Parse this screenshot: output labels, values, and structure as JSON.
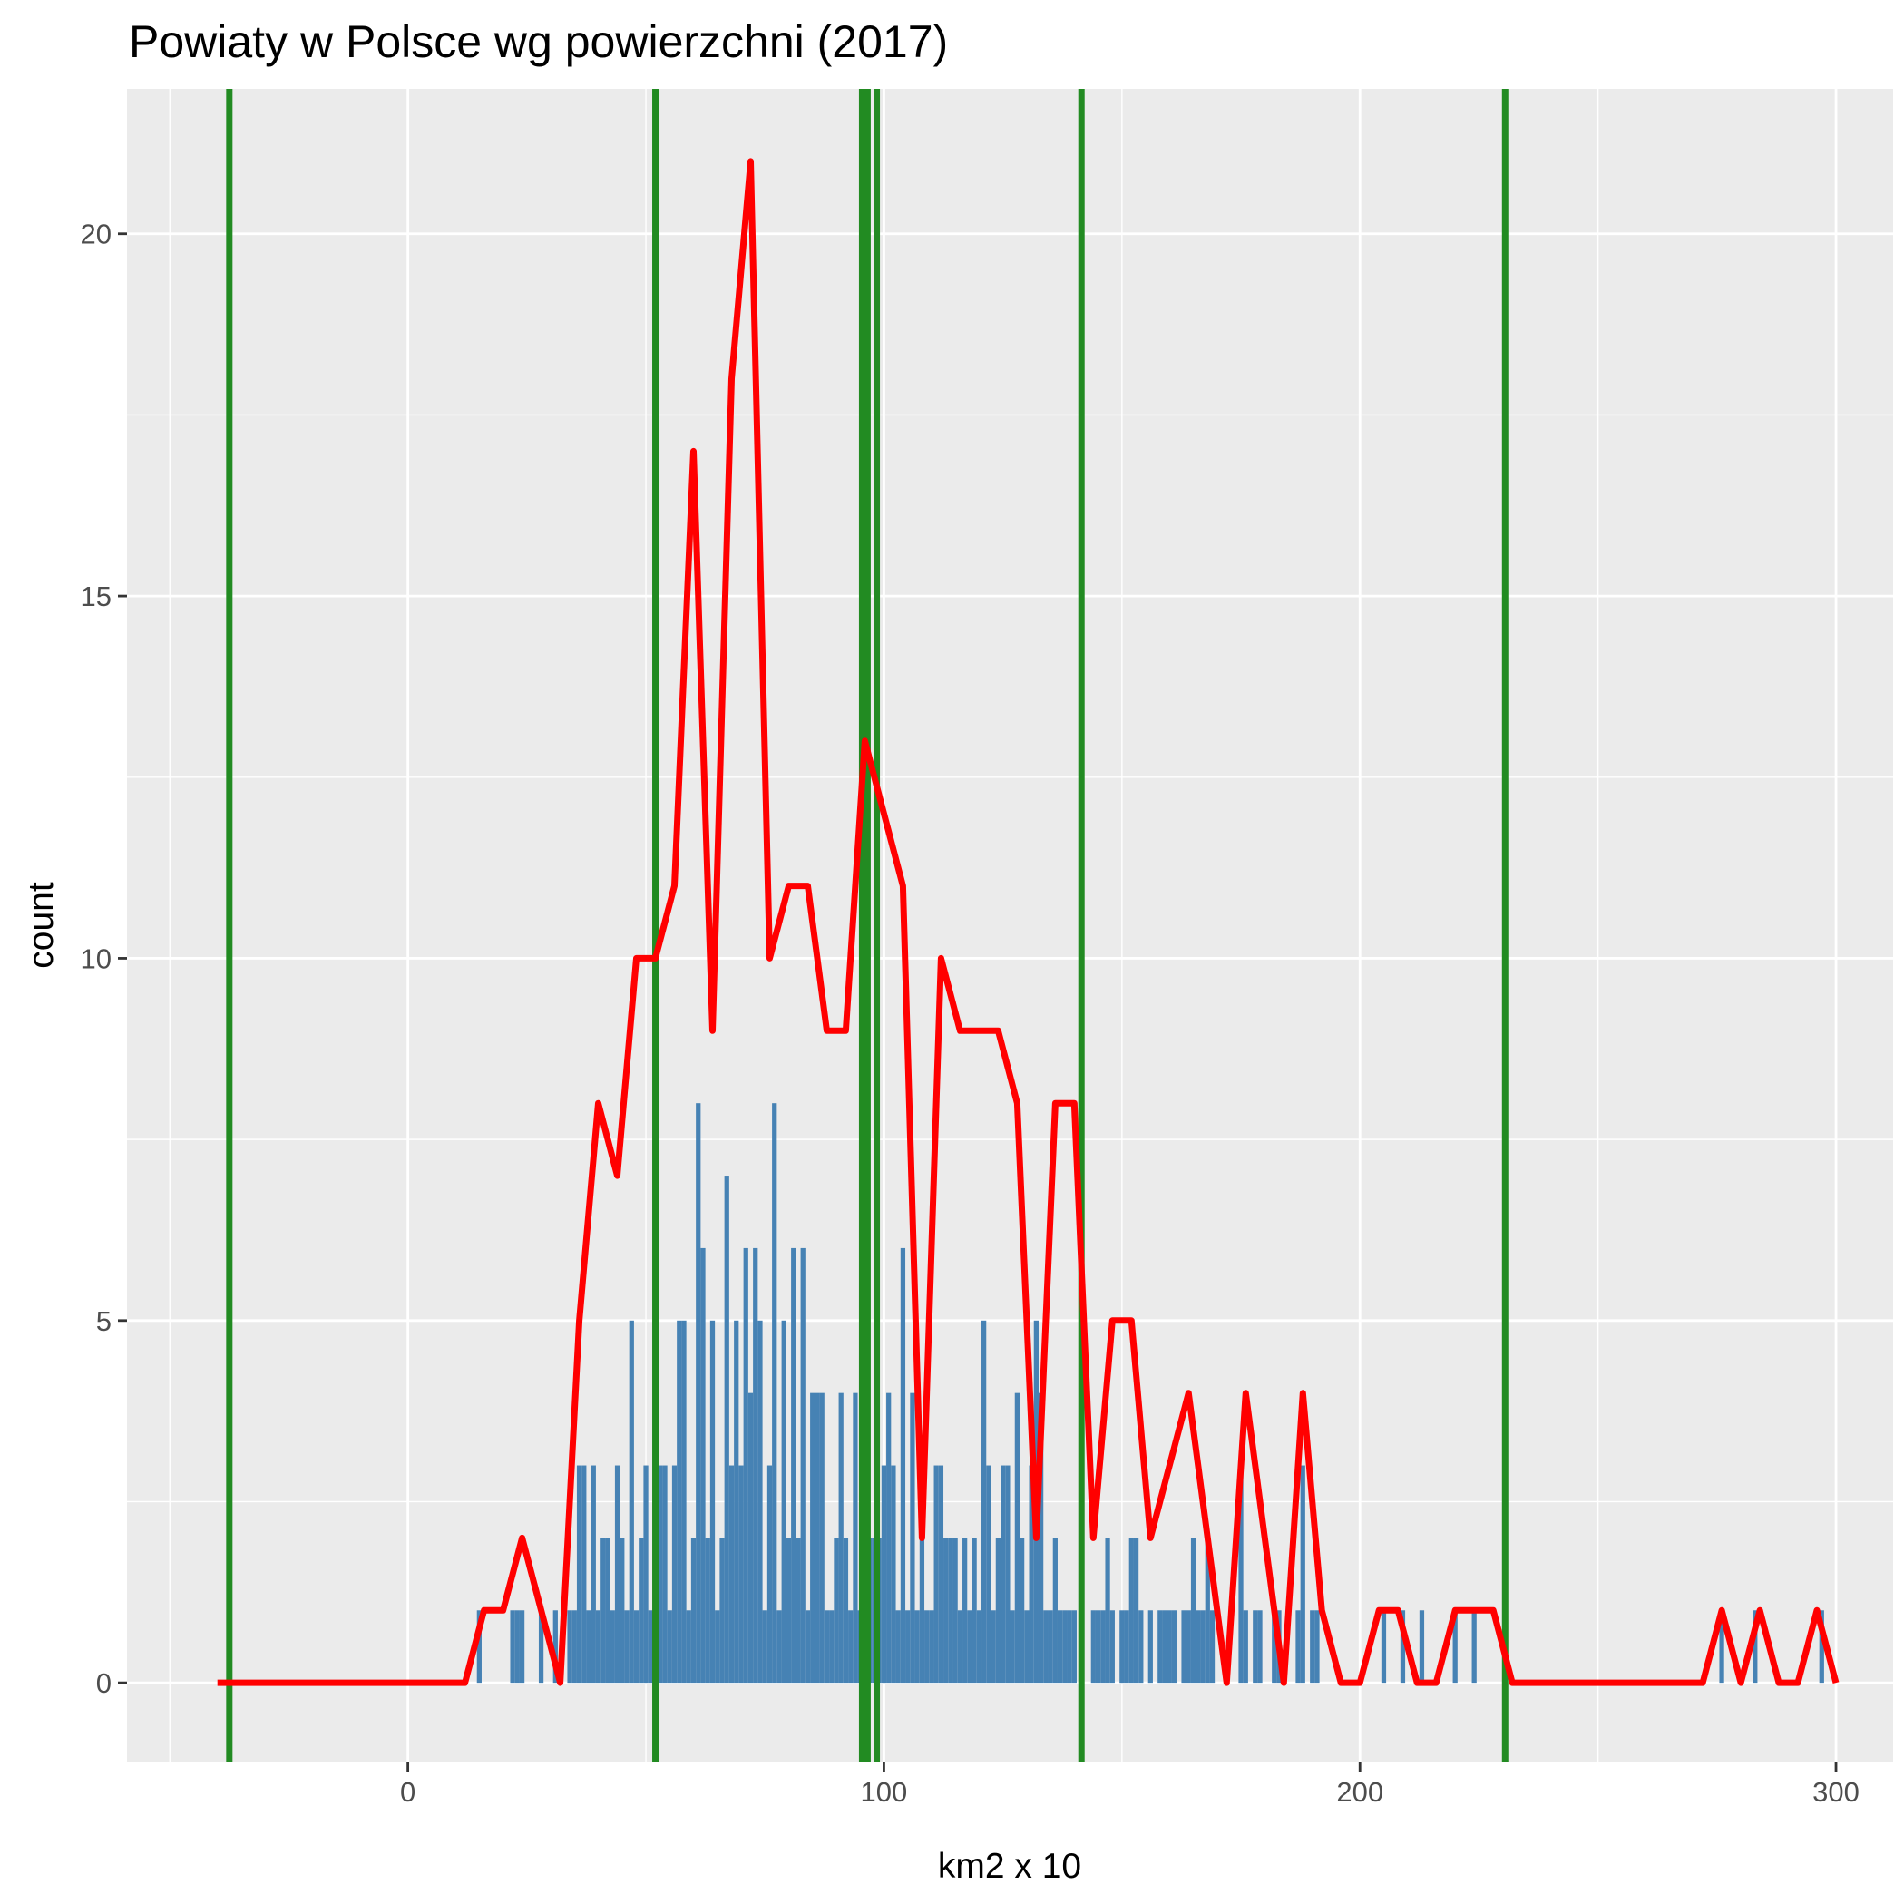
{
  "chart_data": {
    "type": "bar",
    "title": "Powiaty w Polsce wg powierzchni (2017)",
    "xlabel": "km2 x 10",
    "ylabel": "count",
    "xlim": [
      -59,
      312
    ],
    "ylim": [
      -1.1,
      22
    ],
    "x_ticks": [
      0,
      100,
      200,
      300
    ],
    "y_ticks": [
      0,
      5,
      10,
      15,
      20
    ],
    "grid": true,
    "colors": {
      "panel": "#EBEBEB",
      "grid": "#FFFFFF",
      "bars": "#4682B4",
      "frequency_line": "#FF0000",
      "vertical_lines": "#228B22"
    },
    "bars": [
      {
        "x": 15,
        "y": 1
      },
      {
        "x": 22,
        "y": 1
      },
      {
        "x": 23,
        "y": 1
      },
      {
        "x": 24,
        "y": 1
      },
      {
        "x": 28,
        "y": 1
      },
      {
        "x": 31,
        "y": 1
      },
      {
        "x": 34,
        "y": 1
      },
      {
        "x": 35,
        "y": 1
      },
      {
        "x": 36,
        "y": 3
      },
      {
        "x": 37,
        "y": 3
      },
      {
        "x": 38,
        "y": 1
      },
      {
        "x": 39,
        "y": 3
      },
      {
        "x": 40,
        "y": 1
      },
      {
        "x": 41,
        "y": 2
      },
      {
        "x": 42,
        "y": 2
      },
      {
        "x": 43,
        "y": 1
      },
      {
        "x": 44,
        "y": 3
      },
      {
        "x": 45,
        "y": 2
      },
      {
        "x": 46,
        "y": 1
      },
      {
        "x": 47,
        "y": 5
      },
      {
        "x": 48,
        "y": 1
      },
      {
        "x": 49,
        "y": 2
      },
      {
        "x": 50,
        "y": 3
      },
      {
        "x": 51,
        "y": 1
      },
      {
        "x": 52,
        "y": 3
      },
      {
        "x": 53,
        "y": 3
      },
      {
        "x": 54,
        "y": 3
      },
      {
        "x": 55,
        "y": 1
      },
      {
        "x": 56,
        "y": 3
      },
      {
        "x": 57,
        "y": 5
      },
      {
        "x": 58,
        "y": 5
      },
      {
        "x": 59,
        "y": 1
      },
      {
        "x": 60,
        "y": 2
      },
      {
        "x": 61,
        "y": 8
      },
      {
        "x": 62,
        "y": 6
      },
      {
        "x": 63,
        "y": 2
      },
      {
        "x": 64,
        "y": 5
      },
      {
        "x": 65,
        "y": 1
      },
      {
        "x": 66,
        "y": 2
      },
      {
        "x": 67,
        "y": 7
      },
      {
        "x": 68,
        "y": 3
      },
      {
        "x": 69,
        "y": 5
      },
      {
        "x": 70,
        "y": 3
      },
      {
        "x": 71,
        "y": 6
      },
      {
        "x": 72,
        "y": 4
      },
      {
        "x": 73,
        "y": 6
      },
      {
        "x": 74,
        "y": 5
      },
      {
        "x": 75,
        "y": 1
      },
      {
        "x": 76,
        "y": 3
      },
      {
        "x": 77,
        "y": 8
      },
      {
        "x": 78,
        "y": 1
      },
      {
        "x": 79,
        "y": 5
      },
      {
        "x": 80,
        "y": 2
      },
      {
        "x": 81,
        "y": 6
      },
      {
        "x": 82,
        "y": 2
      },
      {
        "x": 83,
        "y": 6
      },
      {
        "x": 84,
        "y": 1
      },
      {
        "x": 85,
        "y": 4
      },
      {
        "x": 86,
        "y": 4
      },
      {
        "x": 87,
        "y": 4
      },
      {
        "x": 88,
        "y": 1
      },
      {
        "x": 89,
        "y": 1
      },
      {
        "x": 90,
        "y": 2
      },
      {
        "x": 91,
        "y": 4
      },
      {
        "x": 92,
        "y": 2
      },
      {
        "x": 93,
        "y": 1
      },
      {
        "x": 94,
        "y": 4
      },
      {
        "x": 95,
        "y": 1
      },
      {
        "x": 96,
        "y": 3
      },
      {
        "x": 97,
        "y": 2
      },
      {
        "x": 98,
        "y": 2
      },
      {
        "x": 99,
        "y": 2
      },
      {
        "x": 100,
        "y": 3
      },
      {
        "x": 101,
        "y": 4
      },
      {
        "x": 102,
        "y": 3
      },
      {
        "x": 103,
        "y": 1
      },
      {
        "x": 104,
        "y": 6
      },
      {
        "x": 105,
        "y": 1
      },
      {
        "x": 106,
        "y": 4
      },
      {
        "x": 107,
        "y": 1
      },
      {
        "x": 108,
        "y": 2
      },
      {
        "x": 109,
        "y": 1
      },
      {
        "x": 110,
        "y": 1
      },
      {
        "x": 111,
        "y": 3
      },
      {
        "x": 112,
        "y": 3
      },
      {
        "x": 113,
        "y": 2
      },
      {
        "x": 114,
        "y": 2
      },
      {
        "x": 115,
        "y": 2
      },
      {
        "x": 116,
        "y": 1
      },
      {
        "x": 117,
        "y": 2
      },
      {
        "x": 118,
        "y": 1
      },
      {
        "x": 119,
        "y": 2
      },
      {
        "x": 120,
        "y": 1
      },
      {
        "x": 121,
        "y": 5
      },
      {
        "x": 122,
        "y": 3
      },
      {
        "x": 123,
        "y": 1
      },
      {
        "x": 124,
        "y": 2
      },
      {
        "x": 125,
        "y": 3
      },
      {
        "x": 126,
        "y": 3
      },
      {
        "x": 127,
        "y": 1
      },
      {
        "x": 128,
        "y": 4
      },
      {
        "x": 129,
        "y": 2
      },
      {
        "x": 130,
        "y": 1
      },
      {
        "x": 131,
        "y": 3
      },
      {
        "x": 132,
        "y": 5
      },
      {
        "x": 133,
        "y": 4
      },
      {
        "x": 134,
        "y": 1
      },
      {
        "x": 135,
        "y": 1
      },
      {
        "x": 136,
        "y": 2
      },
      {
        "x": 137,
        "y": 1
      },
      {
        "x": 138,
        "y": 1
      },
      {
        "x": 139,
        "y": 1
      },
      {
        "x": 140,
        "y": 1
      },
      {
        "x": 144,
        "y": 1
      },
      {
        "x": 145,
        "y": 1
      },
      {
        "x": 146,
        "y": 1
      },
      {
        "x": 147,
        "y": 2
      },
      {
        "x": 148,
        "y": 1
      },
      {
        "x": 150,
        "y": 1
      },
      {
        "x": 151,
        "y": 1
      },
      {
        "x": 152,
        "y": 2
      },
      {
        "x": 153,
        "y": 2
      },
      {
        "x": 154,
        "y": 1
      },
      {
        "x": 156,
        "y": 1
      },
      {
        "x": 158,
        "y": 1
      },
      {
        "x": 159,
        "y": 1
      },
      {
        "x": 160,
        "y": 1
      },
      {
        "x": 161,
        "y": 1
      },
      {
        "x": 163,
        "y": 1
      },
      {
        "x": 164,
        "y": 1
      },
      {
        "x": 165,
        "y": 2
      },
      {
        "x": 166,
        "y": 1
      },
      {
        "x": 167,
        "y": 1
      },
      {
        "x": 168,
        "y": 2
      },
      {
        "x": 169,
        "y": 1
      },
      {
        "x": 175,
        "y": 3
      },
      {
        "x": 176,
        "y": 1
      },
      {
        "x": 178,
        "y": 1
      },
      {
        "x": 179,
        "y": 1
      },
      {
        "x": 182,
        "y": 1
      },
      {
        "x": 183,
        "y": 1
      },
      {
        "x": 187,
        "y": 1
      },
      {
        "x": 188,
        "y": 3
      },
      {
        "x": 190,
        "y": 1
      },
      {
        "x": 191,
        "y": 1
      },
      {
        "x": 205,
        "y": 1
      },
      {
        "x": 209,
        "y": 1
      },
      {
        "x": 213,
        "y": 1
      },
      {
        "x": 220,
        "y": 1
      },
      {
        "x": 224,
        "y": 1
      },
      {
        "x": 276,
        "y": 1
      },
      {
        "x": 283,
        "y": 1
      },
      {
        "x": 297,
        "y": 1
      }
    ],
    "frequency_line": [
      {
        "x": -40,
        "y": 0
      },
      {
        "x": -36,
        "y": 0
      },
      {
        "x": -32,
        "y": 0
      },
      {
        "x": -28,
        "y": 0
      },
      {
        "x": -24,
        "y": 0
      },
      {
        "x": -20,
        "y": 0
      },
      {
        "x": -16,
        "y": 0
      },
      {
        "x": -12,
        "y": 0
      },
      {
        "x": -8,
        "y": 0
      },
      {
        "x": -4,
        "y": 0
      },
      {
        "x": 0,
        "y": 0
      },
      {
        "x": 4,
        "y": 0
      },
      {
        "x": 8,
        "y": 0
      },
      {
        "x": 12,
        "y": 0
      },
      {
        "x": 16,
        "y": 1
      },
      {
        "x": 20,
        "y": 1
      },
      {
        "x": 24,
        "y": 2
      },
      {
        "x": 28,
        "y": 1
      },
      {
        "x": 32,
        "y": 0
      },
      {
        "x": 36,
        "y": 5
      },
      {
        "x": 40,
        "y": 8
      },
      {
        "x": 44,
        "y": 7
      },
      {
        "x": 48,
        "y": 10
      },
      {
        "x": 52,
        "y": 10
      },
      {
        "x": 56,
        "y": 11
      },
      {
        "x": 60,
        "y": 17
      },
      {
        "x": 64,
        "y": 9
      },
      {
        "x": 68,
        "y": 18
      },
      {
        "x": 72,
        "y": 21
      },
      {
        "x": 76,
        "y": 10
      },
      {
        "x": 80,
        "y": 11
      },
      {
        "x": 84,
        "y": 11
      },
      {
        "x": 88,
        "y": 9
      },
      {
        "x": 92,
        "y": 9
      },
      {
        "x": 96,
        "y": 13
      },
      {
        "x": 100,
        "y": 12
      },
      {
        "x": 104,
        "y": 11
      },
      {
        "x": 108,
        "y": 2
      },
      {
        "x": 112,
        "y": 10
      },
      {
        "x": 116,
        "y": 9
      },
      {
        "x": 120,
        "y": 9
      },
      {
        "x": 124,
        "y": 9
      },
      {
        "x": 128,
        "y": 8
      },
      {
        "x": 132,
        "y": 2
      },
      {
        "x": 136,
        "y": 8
      },
      {
        "x": 140,
        "y": 8
      },
      {
        "x": 144,
        "y": 2
      },
      {
        "x": 148,
        "y": 5
      },
      {
        "x": 152,
        "y": 5
      },
      {
        "x": 156,
        "y": 2
      },
      {
        "x": 160,
        "y": 3
      },
      {
        "x": 164,
        "y": 4
      },
      {
        "x": 168,
        "y": 2
      },
      {
        "x": 172,
        "y": 0
      },
      {
        "x": 176,
        "y": 4
      },
      {
        "x": 180,
        "y": 2
      },
      {
        "x": 184,
        "y": 0
      },
      {
        "x": 188,
        "y": 4
      },
      {
        "x": 192,
        "y": 1
      },
      {
        "x": 196,
        "y": 0
      },
      {
        "x": 200,
        "y": 0
      },
      {
        "x": 204,
        "y": 1
      },
      {
        "x": 208,
        "y": 1
      },
      {
        "x": 212,
        "y": 0
      },
      {
        "x": 216,
        "y": 0
      },
      {
        "x": 220,
        "y": 1
      },
      {
        "x": 224,
        "y": 1
      },
      {
        "x": 228,
        "y": 1
      },
      {
        "x": 232,
        "y": 0
      },
      {
        "x": 236,
        "y": 0
      },
      {
        "x": 240,
        "y": 0
      },
      {
        "x": 244,
        "y": 0
      },
      {
        "x": 248,
        "y": 0
      },
      {
        "x": 252,
        "y": 0
      },
      {
        "x": 256,
        "y": 0
      },
      {
        "x": 260,
        "y": 0
      },
      {
        "x": 264,
        "y": 0
      },
      {
        "x": 268,
        "y": 0
      },
      {
        "x": 272,
        "y": 0
      },
      {
        "x": 276,
        "y": 1
      },
      {
        "x": 280,
        "y": 0
      },
      {
        "x": 284,
        "y": 1
      },
      {
        "x": 288,
        "y": 0
      },
      {
        "x": 292,
        "y": 0
      },
      {
        "x": 296,
        "y": 1
      },
      {
        "x": 300,
        "y": 0
      }
    ],
    "vertical_lines": [
      {
        "x": -37.5,
        "weight": "normal"
      },
      {
        "x": 52,
        "weight": "normal"
      },
      {
        "x": 96,
        "weight": "bold"
      },
      {
        "x": 98.5,
        "weight": "normal"
      },
      {
        "x": 141.5,
        "weight": "normal"
      },
      {
        "x": 230.5,
        "weight": "normal"
      }
    ]
  }
}
